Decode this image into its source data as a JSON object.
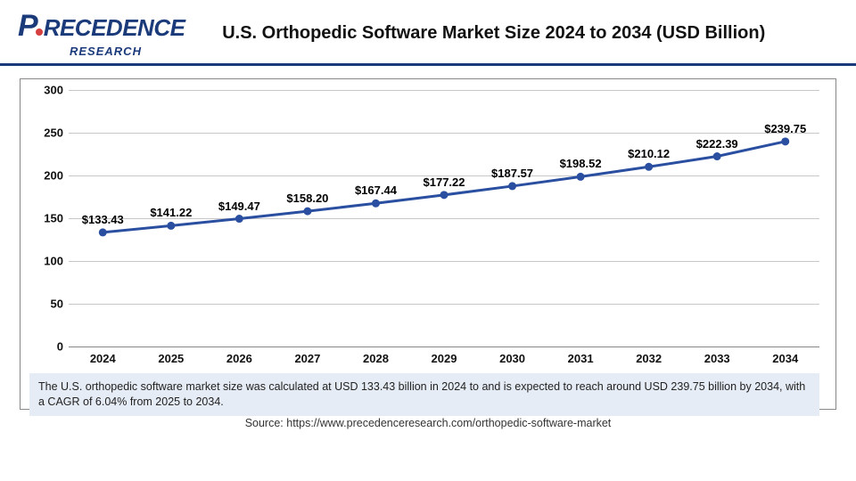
{
  "logo": {
    "main_prefix": "P",
    "main_rest": "RECEDENCE",
    "sub": "RESEARCH"
  },
  "title": "U.S. Orthopedic Software Market Size 2024 to 2034 (USD Billion)",
  "chart": {
    "type": "line",
    "line_color": "#2a4fa0",
    "marker_color": "#2a4fa0",
    "line_width": 3,
    "marker_radius": 4.5,
    "grid_color": "#c8c8c8",
    "axis_color": "#888888",
    "background_color": "#ffffff",
    "ylim": [
      0,
      300
    ],
    "ytick_step": 50,
    "yticks": [
      0,
      50,
      100,
      150,
      200,
      250,
      300
    ],
    "categories": [
      "2024",
      "2025",
      "2026",
      "2027",
      "2028",
      "2029",
      "2030",
      "2031",
      "2032",
      "2033",
      "2034"
    ],
    "values": [
      133.43,
      141.22,
      149.47,
      158.2,
      167.44,
      177.22,
      187.57,
      198.52,
      210.12,
      222.39,
      239.75
    ],
    "labels": [
      "$133.43",
      "$141.22",
      "$149.47",
      "$158.20",
      "$167.44",
      "$177.22",
      "$187.57",
      "$198.52",
      "$210.12",
      "$222.39",
      "$239.75"
    ],
    "label_fontsize": 13,
    "tick_fontsize": 13
  },
  "caption": "The U.S. orthopedic software market size was calculated at USD 133.43 billion in 2024 to and is expected to reach around USD 239.75 billion by 2034, with a CAGR of 6.04% from 2025 to 2034.",
  "source": "Source: https://www.precedenceresearch.com/orthopedic-software-market"
}
